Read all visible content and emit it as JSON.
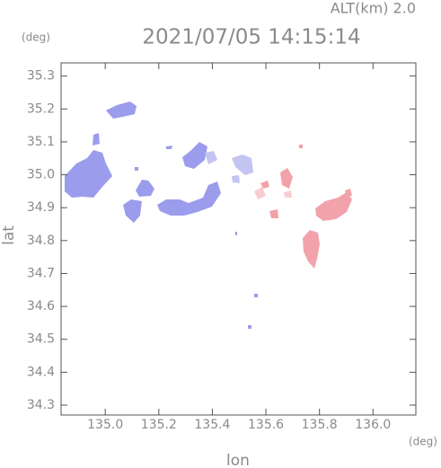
{
  "chart_data": {
    "type": "map",
    "title": "2021/07/05 14:15:14",
    "subtitle": "ALT(km) 2.0",
    "x_label": "lon",
    "y_label": "lat",
    "x_unit": "(deg)",
    "y_unit": "(deg)",
    "xlim": [
      134.835,
      136.16
    ],
    "ylim": [
      34.27,
      35.34
    ],
    "xticks": [
      {
        "value": 135,
        "label": "135.0"
      },
      135.2,
      135.4,
      135.6,
      135.8,
      {
        "value": 136,
        "label": "136.0"
      }
    ],
    "yticks": [
      34.3,
      34.4,
      34.5,
      34.6,
      34.7,
      34.8,
      34.9,
      {
        "value": 35,
        "label": "35.0"
      },
      35.1,
      35.2,
      35.3
    ]
  }
}
